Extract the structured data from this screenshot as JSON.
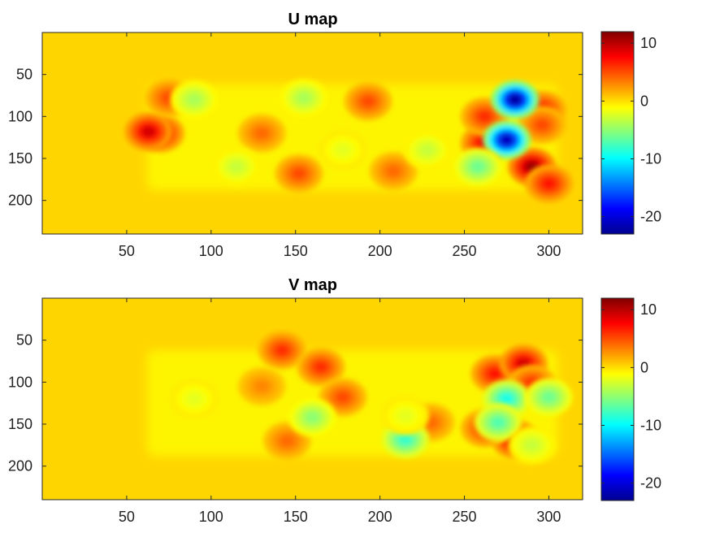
{
  "chart_data": [
    {
      "type": "heatmap",
      "title": "U map",
      "colormap": "jet",
      "background_value": 0,
      "x_ticks": [
        50,
        100,
        150,
        200,
        250,
        300
      ],
      "y_ticks": [
        50,
        100,
        150,
        200
      ],
      "xlim": [
        0,
        320
      ],
      "ylim": [
        240,
        0
      ],
      "y_reversed": true,
      "clim": [
        -23,
        12
      ],
      "colorbar_ticks": [
        10,
        0,
        -10,
        -20
      ],
      "nonzero_region": {
        "x": [
          62,
          305
        ],
        "y": [
          62,
          188
        ]
      },
      "features": [
        {
          "x": 70,
          "y": 120,
          "value": 8
        },
        {
          "x": 63,
          "y": 118,
          "value": 9
        },
        {
          "x": 75,
          "y": 78,
          "value": 5
        },
        {
          "x": 130,
          "y": 120,
          "value": 4
        },
        {
          "x": 152,
          "y": 168,
          "value": 5
        },
        {
          "x": 193,
          "y": 82,
          "value": 5
        },
        {
          "x": 208,
          "y": 165,
          "value": 4
        },
        {
          "x": 262,
          "y": 132,
          "value": 8
        },
        {
          "x": 262,
          "y": 100,
          "value": 6
        },
        {
          "x": 296,
          "y": 92,
          "value": 7
        },
        {
          "x": 296,
          "y": 110,
          "value": 5
        },
        {
          "x": 290,
          "y": 160,
          "value": 11
        },
        {
          "x": 300,
          "y": 180,
          "value": 7
        },
        {
          "x": 280,
          "y": 80,
          "value": -22
        },
        {
          "x": 275,
          "y": 128,
          "value": -21
        },
        {
          "x": 258,
          "y": 160,
          "value": -6
        },
        {
          "x": 90,
          "y": 80,
          "value": -4
        },
        {
          "x": 155,
          "y": 78,
          "value": -4
        },
        {
          "x": 115,
          "y": 160,
          "value": -3
        },
        {
          "x": 228,
          "y": 140,
          "value": -3
        },
        {
          "x": 178,
          "y": 140,
          "value": -2
        }
      ]
    },
    {
      "type": "heatmap",
      "title": "V map",
      "colormap": "jet",
      "background_value": 0,
      "x_ticks": [
        50,
        100,
        150,
        200,
        250,
        300
      ],
      "y_ticks": [
        50,
        100,
        150,
        200
      ],
      "xlim": [
        0,
        320
      ],
      "ylim": [
        240,
        0
      ],
      "y_reversed": true,
      "clim": [
        -23,
        12
      ],
      "colorbar_ticks": [
        10,
        0,
        -10,
        -20
      ],
      "nonzero_region": {
        "x": [
          62,
          305
        ],
        "y": [
          62,
          188
        ]
      },
      "features": [
        {
          "x": 142,
          "y": 62,
          "value": 6
        },
        {
          "x": 165,
          "y": 82,
          "value": 6
        },
        {
          "x": 178,
          "y": 118,
          "value": 5
        },
        {
          "x": 130,
          "y": 105,
          "value": 3
        },
        {
          "x": 145,
          "y": 170,
          "value": 4
        },
        {
          "x": 268,
          "y": 90,
          "value": 7
        },
        {
          "x": 285,
          "y": 78,
          "value": 9
        },
        {
          "x": 290,
          "y": 102,
          "value": 6
        },
        {
          "x": 280,
          "y": 168,
          "value": 9
        },
        {
          "x": 262,
          "y": 155,
          "value": 6
        },
        {
          "x": 230,
          "y": 148,
          "value": 4
        },
        {
          "x": 275,
          "y": 120,
          "value": -9
        },
        {
          "x": 300,
          "y": 118,
          "value": -6
        },
        {
          "x": 215,
          "y": 168,
          "value": -8
        },
        {
          "x": 160,
          "y": 142,
          "value": -5
        },
        {
          "x": 270,
          "y": 148,
          "value": -7
        },
        {
          "x": 215,
          "y": 140,
          "value": -2
        },
        {
          "x": 90,
          "y": 120,
          "value": -2
        },
        {
          "x": 290,
          "y": 175,
          "value": -3
        }
      ]
    }
  ]
}
